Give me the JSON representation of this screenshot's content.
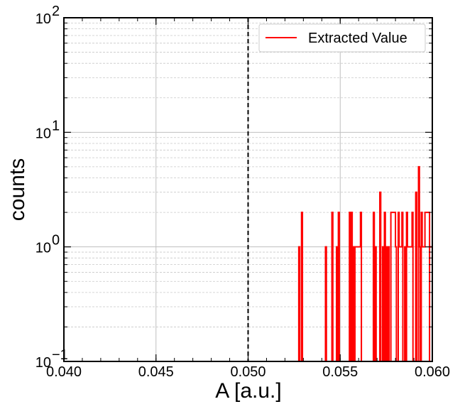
{
  "chart_data": {
    "type": "histogram",
    "title": "",
    "xlabel": "A [a.u.]",
    "ylabel": "counts",
    "xlim": [
      0.04,
      0.06
    ],
    "ylim": [
      0.1,
      100
    ],
    "yscale": "log",
    "grid": true,
    "legend_position": "top-right",
    "x_ticks": [
      "0.040",
      "0.045",
      "0.050",
      "0.055",
      "0.060"
    ],
    "x_tick_values": [
      0.04,
      0.045,
      0.05,
      0.055,
      0.06
    ],
    "y_ticks": [
      {
        "base": "10",
        "exp": "−1",
        "value": 0.1
      },
      {
        "base": "10",
        "exp": "0",
        "value": 1
      },
      {
        "base": "10",
        "exp": "1",
        "value": 10
      },
      {
        "base": "10",
        "exp": "2",
        "value": 100
      }
    ],
    "reference_line": {
      "x": 0.05,
      "style": "dashed",
      "color": "#000000"
    },
    "series": [
      {
        "name": "Extracted Value",
        "color": "#ff0000",
        "bins": [
          [
            0.05275,
            0.0528,
            1
          ],
          [
            0.0529,
            0.05295,
            2
          ],
          [
            0.0542,
            0.05425,
            1
          ],
          [
            0.05455,
            0.0546,
            2
          ],
          [
            0.0548,
            0.05485,
            1
          ],
          [
            0.0549,
            0.05495,
            2
          ],
          [
            0.0555,
            0.05555,
            2
          ],
          [
            0.0556,
            0.05565,
            2
          ],
          [
            0.0557,
            0.05575,
            1
          ],
          [
            0.0558,
            0.05585,
            1
          ],
          [
            0.05585,
            0.0561,
            1
          ],
          [
            0.0561,
            0.05615,
            2
          ],
          [
            0.0568,
            0.05685,
            2
          ],
          [
            0.0569,
            0.05695,
            1
          ],
          [
            0.05715,
            0.0572,
            3
          ],
          [
            0.0573,
            0.05735,
            1
          ],
          [
            0.0574,
            0.05745,
            2
          ],
          [
            0.0575,
            0.05755,
            1
          ],
          [
            0.0576,
            0.05765,
            1
          ],
          [
            0.05775,
            0.058,
            2
          ],
          [
            0.058,
            0.05805,
            1
          ],
          [
            0.05815,
            0.0582,
            2
          ],
          [
            0.0582,
            0.05835,
            1
          ],
          [
            0.05835,
            0.0584,
            2
          ],
          [
            0.0585,
            0.05855,
            1
          ],
          [
            0.0586,
            0.05865,
            2
          ],
          [
            0.05865,
            0.0589,
            1
          ],
          [
            0.0589,
            0.05895,
            2
          ],
          [
            0.0591,
            0.05915,
            3
          ],
          [
            0.05925,
            0.0593,
            5
          ],
          [
            0.0593,
            0.05935,
            1
          ],
          [
            0.0594,
            0.05945,
            2
          ],
          [
            0.05945,
            0.0596,
            1
          ],
          [
            0.0596,
            0.05985,
            2
          ]
        ]
      }
    ]
  }
}
